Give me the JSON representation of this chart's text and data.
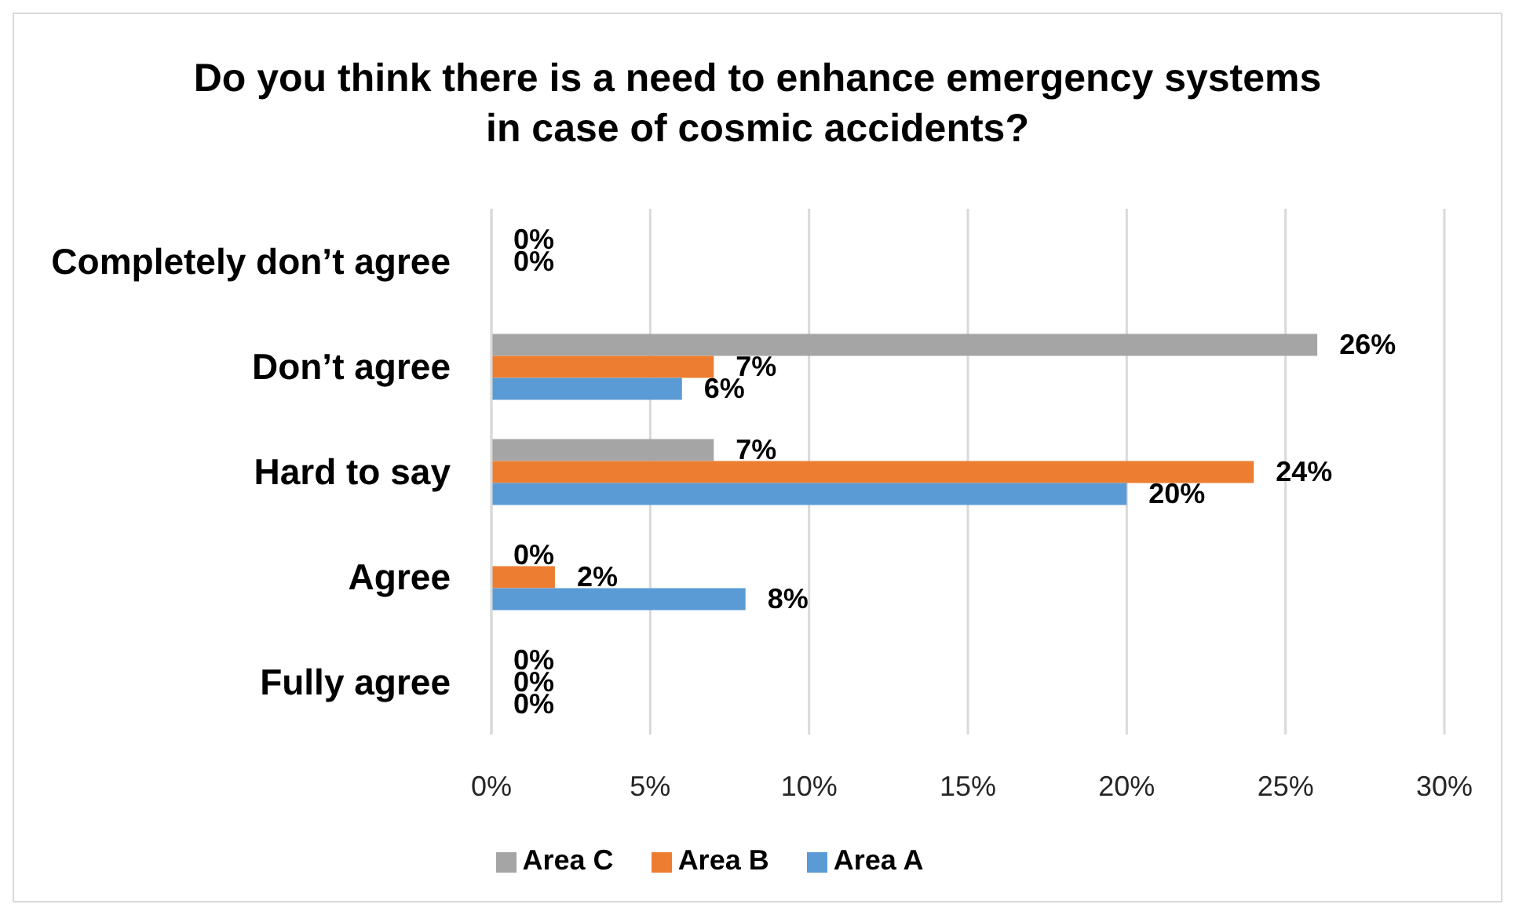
{
  "chart_data": {
    "type": "bar",
    "orientation": "horizontal",
    "title": "Do you think there is a need to enhance emergency systems in case of cosmic accidents?",
    "categories": [
      "Completely don’t agree",
      "Don’t agree",
      "Hard to say",
      "Agree",
      "Fully agree"
    ],
    "series": [
      {
        "name": "Area C",
        "color": "#a5a5a5",
        "values": [
          0,
          26,
          7,
          0,
          0
        ],
        "value_labels": [
          "0%",
          "26%",
          "7%",
          "0%",
          "0%"
        ]
      },
      {
        "name": "Area B",
        "color": "#ed7d31",
        "values": [
          0,
          7,
          24,
          2,
          0
        ],
        "value_labels": [
          "0%",
          "7%",
          "24%",
          "2%",
          "0%"
        ]
      },
      {
        "name": "Area A",
        "color": "#5b9bd5",
        "values": [
          null,
          6,
          20,
          8,
          0
        ],
        "value_labels": [
          null,
          "6%",
          "20%",
          "8%",
          "0%"
        ]
      }
    ],
    "xlim": [
      0,
      30
    ],
    "xticks": [
      {
        "value": 0,
        "label": "0%"
      },
      {
        "value": 5,
        "label": "5%"
      },
      {
        "value": 10,
        "label": "10%"
      },
      {
        "value": 15,
        "label": "15%"
      },
      {
        "value": 20,
        "label": "20%"
      },
      {
        "value": 25,
        "label": "25%"
      },
      {
        "value": 30,
        "label": "30%"
      }
    ],
    "grid": "x",
    "legend": "bottom"
  }
}
